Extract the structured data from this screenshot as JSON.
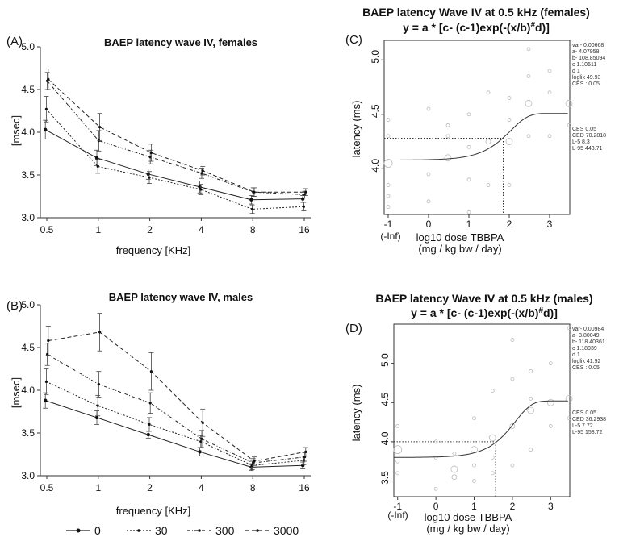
{
  "chart_data": [
    {
      "id": "A",
      "type": "line",
      "panel_label": "(A)",
      "title": "BAEP latency wave IV, females",
      "xlabel": "frequency [KHz]",
      "ylabel": "[msec]",
      "categories": [
        "0.5",
        "1",
        "2",
        "4",
        "8",
        "16"
      ],
      "ylim": [
        3.0,
        5.0
      ],
      "yticks": [
        "3.0",
        "3.5",
        "4.0",
        "4.5",
        "5.0"
      ],
      "series": [
        {
          "name": "0",
          "dash": "",
          "values": [
            4.03,
            3.7,
            3.51,
            3.36,
            3.21,
            3.22
          ],
          "err": [
            0.11,
            0.09,
            0.06,
            0.07,
            0.05,
            0.04
          ]
        },
        {
          "name": "30",
          "dash": "2,2",
          "values": [
            4.27,
            3.6,
            3.47,
            3.33,
            3.1,
            3.13
          ],
          "err": [
            0.15,
            0.08,
            0.07,
            0.06,
            0.05,
            0.05
          ]
        },
        {
          "name": "300",
          "dash": "4,2,1,2",
          "values": [
            4.6,
            3.9,
            3.71,
            3.52,
            3.3,
            3.27
          ],
          "err": [
            0.1,
            0.12,
            0.08,
            0.06,
            0.05,
            0.04
          ]
        },
        {
          "name": "3000",
          "dash": "5,3",
          "values": [
            4.62,
            4.06,
            3.76,
            3.55,
            3.3,
            3.3
          ],
          "err": [
            0.12,
            0.16,
            0.1,
            0.05,
            0.05,
            0.04
          ]
        }
      ]
    },
    {
      "id": "B",
      "type": "line",
      "panel_label": "(B)",
      "title": "BAEP latency wave IV, males",
      "xlabel": "frequency [KHz]",
      "ylabel": "[msec]",
      "categories": [
        "0.5",
        "1",
        "2",
        "4",
        "8",
        "16"
      ],
      "ylim": [
        3.0,
        5.0
      ],
      "yticks": [
        "3.0",
        "3.5",
        "4.0",
        "4.5",
        "5.0"
      ],
      "series": [
        {
          "name": "0",
          "dash": "",
          "values": [
            3.88,
            3.68,
            3.48,
            3.28,
            3.1,
            3.12
          ],
          "err": [
            0.09,
            0.08,
            0.04,
            0.05,
            0.04,
            0.04
          ]
        },
        {
          "name": "30",
          "dash": "2,2",
          "values": [
            4.1,
            3.82,
            3.6,
            3.4,
            3.12,
            3.18
          ],
          "err": [
            0.15,
            0.12,
            0.08,
            0.07,
            0.05,
            0.05
          ]
        },
        {
          "name": "300",
          "dash": "4,2,1,2",
          "values": [
            4.42,
            4.07,
            3.85,
            3.43,
            3.15,
            3.22
          ],
          "err": [
            0.13,
            0.15,
            0.12,
            0.1,
            0.05,
            0.05
          ]
        },
        {
          "name": "3000",
          "dash": "5,3",
          "values": [
            4.58,
            4.68,
            4.22,
            3.62,
            3.17,
            3.28
          ],
          "err": [
            0.17,
            0.22,
            0.22,
            0.16,
            0.05,
            0.05
          ]
        }
      ],
      "legend": {
        "position": "bottom",
        "items": [
          "0",
          "30",
          "300",
          "3000"
        ]
      }
    },
    {
      "id": "C",
      "type": "scatter",
      "panel_label": "(C)",
      "title": "BAEP latency Wave IV at 0.5 kHz (females)",
      "formula_prefix": "y = a * [c- (c-1)exp(-(x/b)",
      "formula_sup": "#",
      "formula_suffix": "d)]",
      "xlabel": "log10 dose TBBPA",
      "xlabel2": "(mg / kg bw / day)",
      "ylabel": "latency (ms)",
      "xticks": [
        "-1",
        "0",
        "1",
        "2",
        "3"
      ],
      "xtick_note": "(-Inf)",
      "yticks": [
        "4.0",
        "4.5",
        "5.0"
      ],
      "xlim": [
        -1.1,
        3.5
      ],
      "ylim": [
        3.58,
        5.18
      ],
      "params": [
        "var-   0.00668",
        "a-   4.07958",
        "b-   108.85094",
        "c   1.10511",
        "d   1",
        "loglik   49.93",
        "CES :  0.05"
      ],
      "bmd": [
        "CES   0.05",
        "CED   70.2818",
        "L-5   8.3",
        "L-95   443.71"
      ],
      "ced_log": 1.85,
      "ces_level": 4.28,
      "fit": {
        "a": 4.07958,
        "b": 108.85094,
        "c": 1.10511,
        "d": 1
      },
      "points": [
        {
          "x": -1,
          "y": 4.05,
          "r": 5
        },
        {
          "x": -1,
          "y": 3.65,
          "r": 2
        },
        {
          "x": -1,
          "y": 3.85,
          "r": 2
        },
        {
          "x": -1,
          "y": 4.3,
          "r": 2
        },
        {
          "x": -1,
          "y": 4.45,
          "r": 2
        },
        {
          "x": -1,
          "y": 3.75,
          "r": 2
        },
        {
          "x": 0,
          "y": 3.7,
          "r": 2
        },
        {
          "x": 0,
          "y": 4.55,
          "r": 2
        },
        {
          "x": 0,
          "y": 3.95,
          "r": 2
        },
        {
          "x": 0.48,
          "y": 4.1,
          "r": 4
        },
        {
          "x": 0.48,
          "y": 4.3,
          "r": 2
        },
        {
          "x": 0.48,
          "y": 4.4,
          "r": 2
        },
        {
          "x": 1,
          "y": 3.6,
          "r": 2
        },
        {
          "x": 1,
          "y": 3.9,
          "r": 2
        },
        {
          "x": 1,
          "y": 4.2,
          "r": 2
        },
        {
          "x": 1,
          "y": 4.5,
          "r": 2
        },
        {
          "x": 1.48,
          "y": 3.85,
          "r": 2
        },
        {
          "x": 1.48,
          "y": 4.25,
          "r": 3
        },
        {
          "x": 1.48,
          "y": 4.7,
          "r": 2
        },
        {
          "x": 2,
          "y": 4.25,
          "r": 4
        },
        {
          "x": 2,
          "y": 4.45,
          "r": 2
        },
        {
          "x": 2,
          "y": 4.65,
          "r": 2
        },
        {
          "x": 2,
          "y": 3.85,
          "r": 2
        },
        {
          "x": 2.48,
          "y": 4.6,
          "r": 4
        },
        {
          "x": 2.48,
          "y": 4.85,
          "r": 2
        },
        {
          "x": 2.48,
          "y": 5.1,
          "r": 2
        },
        {
          "x": 2.48,
          "y": 4.3,
          "r": 2
        },
        {
          "x": 3,
          "y": 4.3,
          "r": 2
        },
        {
          "x": 3,
          "y": 4.7,
          "r": 2
        },
        {
          "x": 3,
          "y": 4.9,
          "r": 2
        },
        {
          "x": 3.48,
          "y": 4.6,
          "r": 4
        },
        {
          "x": 3.48,
          "y": 4.4,
          "r": 2
        }
      ]
    },
    {
      "id": "D",
      "type": "scatter",
      "panel_label": "(D)",
      "title": "BAEP latency Wave IV at 0.5 kHz (males)",
      "formula_prefix": "y = a * [c- (c-1)exp(-(x/b)",
      "formula_sup": "#",
      "formula_suffix": "d)]",
      "xlabel": "log10 dose TBBPA",
      "xlabel2": "(mg / kg bw / day)",
      "ylabel": "latency (ms)",
      "xticks": [
        "-1",
        "0",
        "1",
        "2",
        "3"
      ],
      "xtick_note": "(-Inf)",
      "yticks": [
        "3.5",
        "4.0",
        "4.5",
        "5.0"
      ],
      "xlim": [
        -1.1,
        3.5
      ],
      "ylim": [
        3.3,
        5.5
      ],
      "params": [
        "var-   0.00984",
        "a-   3.80049",
        "b-   118.40361",
        "c   1.18939",
        "d   1",
        "loglik   41.92",
        "CES :  0.05"
      ],
      "bmd": [
        "CES   0.05",
        "CED   36.2938",
        "L-5   7.72",
        "L-95   158.72"
      ],
      "ced_log": 1.56,
      "ces_level": 4.0,
      "fit": {
        "a": 3.80049,
        "b": 118.40361,
        "c": 1.18939,
        "d": 1
      },
      "points": [
        {
          "x": -1,
          "y": 3.9,
          "r": 5
        },
        {
          "x": -1,
          "y": 3.6,
          "r": 2
        },
        {
          "x": -1,
          "y": 4.2,
          "r": 2
        },
        {
          "x": -1,
          "y": 3.75,
          "r": 2
        },
        {
          "x": 0,
          "y": 3.4,
          "r": 2
        },
        {
          "x": 0,
          "y": 3.8,
          "r": 2
        },
        {
          "x": 0,
          "y": 4.0,
          "r": 2
        },
        {
          "x": 0.48,
          "y": 3.65,
          "r": 4
        },
        {
          "x": 0.48,
          "y": 3.55,
          "r": 3
        },
        {
          "x": 0.48,
          "y": 3.85,
          "r": 2
        },
        {
          "x": 1,
          "y": 3.9,
          "r": 4
        },
        {
          "x": 1,
          "y": 3.5,
          "r": 2
        },
        {
          "x": 1,
          "y": 3.7,
          "r": 2
        },
        {
          "x": 1,
          "y": 4.3,
          "r": 2
        },
        {
          "x": 1.48,
          "y": 4.05,
          "r": 4
        },
        {
          "x": 1.48,
          "y": 3.6,
          "r": 2
        },
        {
          "x": 1.48,
          "y": 3.8,
          "r": 2
        },
        {
          "x": 1.48,
          "y": 4.65,
          "r": 2
        },
        {
          "x": 2,
          "y": 4.2,
          "r": 3
        },
        {
          "x": 2,
          "y": 4.8,
          "r": 2
        },
        {
          "x": 2,
          "y": 3.7,
          "r": 2
        },
        {
          "x": 2,
          "y": 5.3,
          "r": 2
        },
        {
          "x": 2.48,
          "y": 4.4,
          "r": 4
        },
        {
          "x": 2.48,
          "y": 4.55,
          "r": 2
        },
        {
          "x": 2.48,
          "y": 4.9,
          "r": 2
        },
        {
          "x": 2.48,
          "y": 3.9,
          "r": 2
        },
        {
          "x": 3,
          "y": 4.5,
          "r": 4
        },
        {
          "x": 3,
          "y": 5.0,
          "r": 2
        },
        {
          "x": 3,
          "y": 4.2,
          "r": 2
        },
        {
          "x": 3.48,
          "y": 4.55,
          "r": 4
        },
        {
          "x": 3.48,
          "y": 5.45,
          "r": 2
        },
        {
          "x": 3.48,
          "y": 4.3,
          "r": 2
        }
      ]
    }
  ]
}
